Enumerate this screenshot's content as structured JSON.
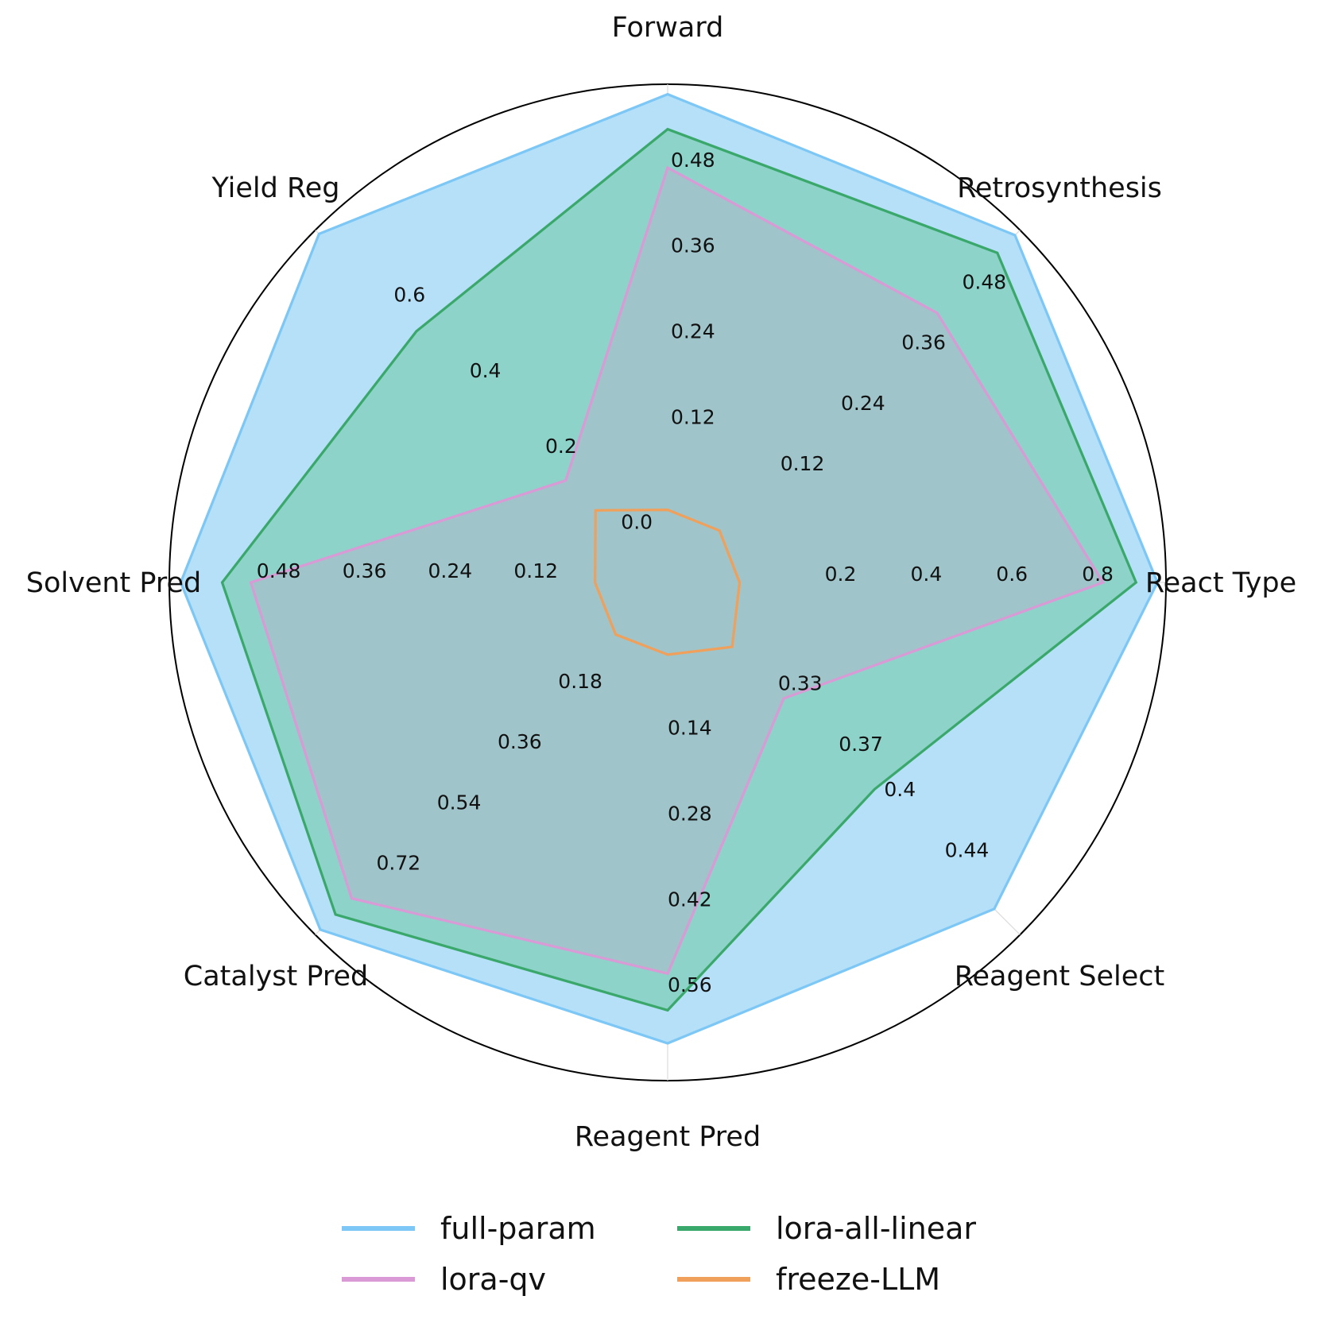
{
  "chart_data": {
    "type": "radar",
    "title": "",
    "axes": [
      {
        "name": "React Type",
        "ticks": [
          "0.2",
          "0.4",
          "0.6",
          "0.8"
        ],
        "tick_values": [
          0.2,
          0.4,
          0.6,
          0.8
        ],
        "max": 1.0
      },
      {
        "name": "Retrosynthesis",
        "ticks": [
          "0.12",
          "0.24",
          "0.36",
          "0.48"
        ],
        "tick_values": [
          0.12,
          0.24,
          0.36,
          0.48
        ],
        "max": 0.6
      },
      {
        "name": "Forward",
        "ticks": [
          "0.12",
          "0.24",
          "0.36",
          "0.48"
        ],
        "tick_values": [
          0.12,
          0.24,
          0.36,
          0.48
        ],
        "max": 0.6
      },
      {
        "name": "Yield Reg",
        "ticks": [
          "0.0",
          "0.2",
          "0.4",
          "0.6"
        ],
        "tick_values": [
          0.0,
          0.2,
          0.4,
          0.6
        ],
        "min": 0.0,
        "max": 0.8
      },
      {
        "name": "Solvent Pred",
        "ticks": [
          "0.12",
          "0.24",
          "0.36",
          "0.48"
        ],
        "tick_values": [
          0.12,
          0.24,
          0.36,
          0.48
        ],
        "max": 0.6
      },
      {
        "name": "Catalyst Pred",
        "ticks": [
          "0.18",
          "0.36",
          "0.54",
          "0.72"
        ],
        "tick_values": [
          0.18,
          0.36,
          0.54,
          0.72
        ],
        "max": 0.9
      },
      {
        "name": "Reagent Pred",
        "ticks": [
          "0.14",
          "0.28",
          "0.42",
          "0.56"
        ],
        "tick_values": [
          0.14,
          0.28,
          0.42,
          0.56
        ],
        "max": 0.7
      },
      {
        "name": "Reagent Select",
        "ticks": [
          "0.33",
          "0.37",
          "0.4",
          "0.44"
        ],
        "tick_values": [
          0.33,
          0.37,
          0.4,
          0.44
        ],
        "min": 0.29,
        "max": 0.49
      }
    ],
    "series": [
      {
        "name": "full-param",
        "color": "#7cc7f5",
        "fill": "#b6e0f8",
        "values": [
          0.98,
          0.59,
          0.586,
          0.79,
          0.584,
          0.885,
          0.639,
          0.473
        ]
      },
      {
        "name": "lora-all-linear",
        "color": "#3aa86a",
        "fill": "#8dd3c9",
        "values": [
          0.93,
          0.555,
          0.537,
          0.533,
          0.526,
          0.84,
          0.585,
          0.394
        ]
      },
      {
        "name": "lora-qv",
        "color": "#d99ad6",
        "fill": "#9fc4c9",
        "values": [
          0.853,
          0.436,
          0.483,
          0.139,
          0.486,
          0.792,
          0.525,
          0.334
        ]
      },
      {
        "name": "freeze-LLM",
        "color": "#f0a05a",
        "fill": "none",
        "values": [
          0.005,
          0.005,
          0.004,
          0.06,
          0.004,
          0.008,
          0.004,
          0.3
        ]
      }
    ],
    "grid": true,
    "legend_position": "bottom"
  }
}
